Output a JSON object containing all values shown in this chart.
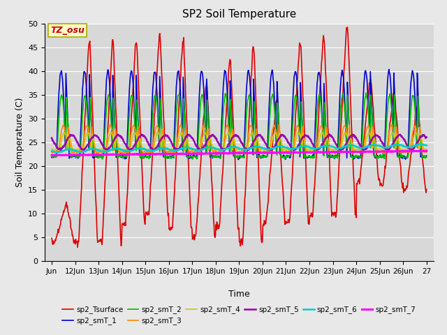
{
  "title": "SP2 Soil Temperature",
  "ylabel": "Soil Temperature (C)",
  "xlabel": "Time",
  "ylim": [
    0,
    50
  ],
  "background_color": "#e8e8e8",
  "plot_bg_color": "#d8d8d8",
  "annotation_text": "TZ_osu",
  "annotation_color": "#cc0000",
  "annotation_bg": "#ffffcc",
  "annotation_edge": "#aaaa00",
  "series_colors": {
    "sp2_Tsurface": "#dd0000",
    "sp2_smT_1": "#0000cc",
    "sp2_smT_2": "#00bb00",
    "sp2_smT_3": "#ff8800",
    "sp2_smT_4": "#cccc00",
    "sp2_smT_5": "#9900aa",
    "sp2_smT_6": "#00cccc",
    "sp2_smT_7": "#ff00ff"
  },
  "series_linewidths": {
    "sp2_Tsurface": 1.2,
    "sp2_smT_1": 1.2,
    "sp2_smT_2": 1.2,
    "sp2_smT_3": 1.2,
    "sp2_smT_4": 1.2,
    "sp2_smT_5": 1.8,
    "sp2_smT_6": 1.8,
    "sp2_smT_7": 2.2
  },
  "x_tick_labels": [
    "Jun",
    "12Jun",
    "13Jun",
    "14Jun",
    "15Jun",
    "16Jun",
    "17Jun",
    "18Jun",
    "19Jun",
    "20Jun",
    "21Jun",
    "22Jun",
    "23Jun",
    "24Jun",
    "25Jun",
    "26Jun",
    "27"
  ],
  "grid_color": "#ffffff",
  "grid_linewidth": 0.8
}
